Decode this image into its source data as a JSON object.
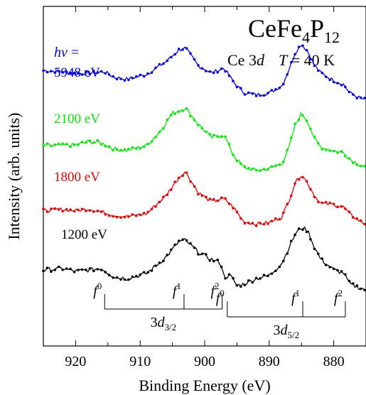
{
  "chart_data": {
    "type": "line",
    "title": "CeFe4P12",
    "title_parts": {
      "base1": "CeFe",
      "sub1": "4",
      "base2": "P",
      "sub2": "12"
    },
    "subtitle": {
      "core": "Ce 3",
      "core_italic": "d",
      "temp_var": "T",
      "temp_rest": " = 40 K"
    },
    "xlabel": "Binding Energy (eV)",
    "ylabel": "Intensity (arb. units)",
    "x_reversed": true,
    "xlim": [
      925,
      875
    ],
    "xticks": [
      "920",
      "910",
      "900",
      "890",
      "880"
    ],
    "photon_label": {
      "symbol": "hν",
      "equals": " ="
    },
    "peak_markers": {
      "d32": {
        "label_base": "3d",
        "label_sub": "3/2",
        "labels": [
          "f0",
          "f1",
          "f2"
        ],
        "x": [
          915.5,
          903.2,
          897.3
        ]
      },
      "d52": {
        "label_base": "3d",
        "label_sub": "5/2",
        "labels": [
          "f0",
          "f1",
          "f2"
        ],
        "x": [
          896.5,
          884.8,
          878.2
        ]
      }
    },
    "series": [
      {
        "name": "5948 eV",
        "color": "#0000ee",
        "x": [
          925,
          922,
          920,
          918,
          915.5,
          914,
          912,
          909,
          906,
          904,
          903,
          901,
          899,
          897,
          895.5,
          894,
          892,
          890,
          888,
          887,
          886,
          885,
          884,
          883,
          882,
          880,
          878.5,
          877.5,
          876,
          875
        ],
        "y": [
          0.52,
          0.5,
          0.47,
          0.48,
          0.5,
          0.41,
          0.38,
          0.46,
          0.66,
          0.85,
          0.88,
          0.6,
          0.48,
          0.56,
          0.33,
          0.17,
          0.13,
          0.16,
          0.28,
          0.52,
          0.8,
          0.95,
          0.82,
          0.6,
          0.48,
          0.36,
          0.3,
          0.16,
          0.08,
          0.05
        ]
      },
      {
        "name": "2100 eV",
        "color": "#00ee00",
        "x": [
          925,
          922,
          920,
          918,
          916,
          914,
          912,
          909,
          907,
          905,
          903,
          901,
          899,
          897,
          895.5,
          894,
          892,
          890,
          888,
          887,
          886,
          885,
          884,
          883,
          882,
          880,
          878.5,
          877.5,
          876,
          875
        ],
        "y": [
          0.4,
          0.4,
          0.41,
          0.46,
          0.44,
          0.35,
          0.33,
          0.4,
          0.6,
          0.88,
          0.96,
          0.72,
          0.52,
          0.56,
          0.25,
          0.08,
          0.03,
          0.06,
          0.14,
          0.35,
          0.7,
          0.88,
          0.76,
          0.5,
          0.38,
          0.32,
          0.3,
          0.2,
          0.12,
          0.08
        ]
      },
      {
        "name": "1800 eV",
        "color": "#ee0000",
        "x": [
          925,
          922,
          920,
          918,
          916,
          914,
          912,
          909,
          906,
          904,
          903,
          901,
          899,
          897,
          895.5,
          894,
          892,
          890,
          888,
          887,
          886,
          885,
          884,
          883,
          882,
          880,
          878.5,
          877.5,
          876,
          875
        ],
        "y": [
          0.3,
          0.32,
          0.3,
          0.33,
          0.28,
          0.22,
          0.2,
          0.25,
          0.55,
          0.85,
          0.95,
          0.6,
          0.45,
          0.5,
          0.35,
          0.12,
          0.08,
          0.1,
          0.2,
          0.45,
          0.76,
          0.9,
          0.75,
          0.55,
          0.42,
          0.4,
          0.36,
          0.24,
          0.13,
          0.07
        ]
      },
      {
        "name": "1200 eV",
        "color": "#000000",
        "x": [
          925,
          922,
          920,
          918,
          916,
          914,
          912,
          909,
          906,
          904,
          903,
          901,
          899,
          897.5,
          897,
          896,
          895,
          894,
          892,
          890,
          888,
          887,
          886,
          885,
          884,
          883,
          882,
          880,
          878.5,
          877.5,
          876,
          875
        ],
        "y": [
          0.3,
          0.32,
          0.28,
          0.3,
          0.32,
          0.2,
          0.18,
          0.25,
          0.48,
          0.7,
          0.72,
          0.55,
          0.45,
          0.4,
          0.2,
          0.22,
          0.08,
          0.1,
          0.18,
          0.22,
          0.4,
          0.6,
          0.8,
          0.9,
          0.85,
          0.62,
          0.45,
          0.3,
          0.26,
          0.1,
          0.05,
          0.02
        ]
      }
    ],
    "grid": false
  }
}
